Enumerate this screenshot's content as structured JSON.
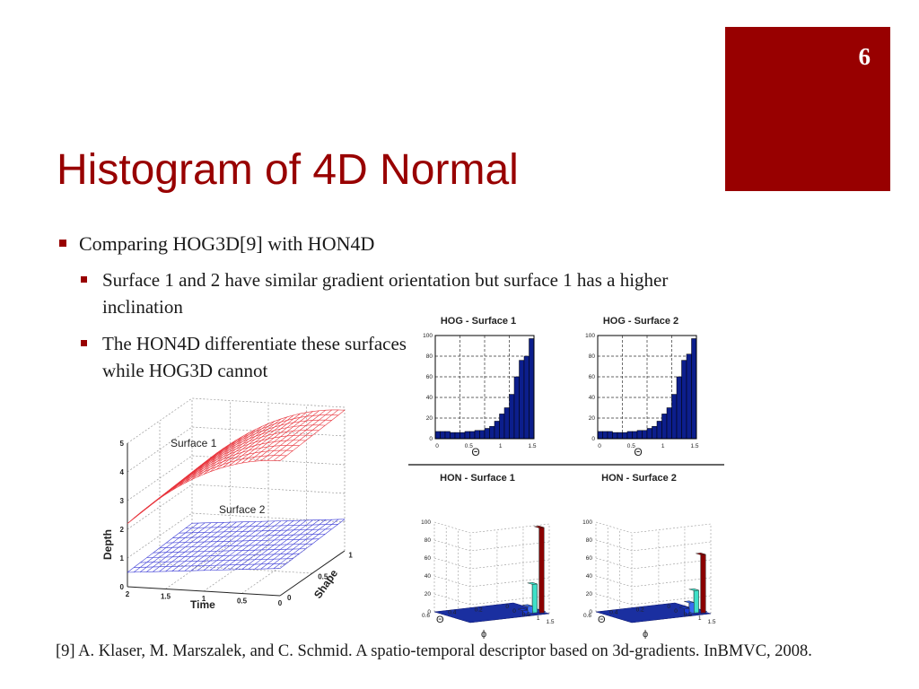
{
  "slide": {
    "number": "6",
    "title": "Histogram of 4D Normal",
    "bullets": [
      "Comparing HOG3D[9] with HON4D",
      "Surface 1 and 2 have similar gradient orientation but surface 1 has a higher inclination",
      "The HON4D differentiate these surfaces while HOG3D cannot"
    ],
    "reference": "[9] A. Klaser, M. Marszalek, and C. Schmid. A spatio-temporal descriptor based on 3d-gradients. InBMVC, 2008.",
    "colors": {
      "accent": "#980000",
      "surface1": "#e8333b",
      "surface2": "#3b3bd6",
      "hist_bar": "#0c1e8c"
    }
  },
  "chart_data": [
    {
      "type": "surface",
      "labels": [
        "Surface 1",
        "Surface 2"
      ],
      "xlabel": "Time",
      "ylabel": "Shape",
      "zlabel": "Depth",
      "xticks": [
        "2",
        "1.5",
        "1",
        "0.5",
        "0"
      ],
      "yticks": [
        "0",
        "0.5",
        "1"
      ],
      "zticks": [
        "0",
        "1",
        "2",
        "3",
        "4",
        "5"
      ],
      "zlim": [
        0,
        5
      ]
    },
    {
      "type": "bar",
      "title": "HOG - Surface 1",
      "xlabel": "Θ",
      "xticks": [
        "0",
        "0.5",
        "1",
        "1.5"
      ],
      "yticks": [
        "0",
        "20",
        "40",
        "60",
        "80",
        "100"
      ],
      "ylim": [
        0,
        100
      ],
      "values": [
        7,
        7,
        7,
        6,
        6,
        6,
        7,
        7,
        8,
        8,
        10,
        12,
        17,
        24,
        30,
        43,
        60,
        76,
        80,
        97
      ]
    },
    {
      "type": "bar",
      "title": "HOG - Surface 2",
      "xlabel": "Θ",
      "xticks": [
        "0",
        "0.5",
        "1",
        "1.5"
      ],
      "yticks": [
        "0",
        "20",
        "40",
        "60",
        "80",
        "100"
      ],
      "ylim": [
        0,
        100
      ],
      "values": [
        7,
        7,
        7,
        6,
        6,
        6,
        7,
        7,
        8,
        8,
        10,
        12,
        17,
        24,
        30,
        43,
        60,
        76,
        82,
        97
      ]
    },
    {
      "type": "bar3d",
      "title": "HON - Surface 1",
      "xlabel": "ϕ",
      "ylabel": "Θ",
      "xticks": [
        "0",
        "0.5",
        "1",
        "1.5"
      ],
      "yticks": [
        "0",
        "0.2",
        "0.4",
        "0.6"
      ],
      "zticks": [
        "0",
        "20",
        "40",
        "60",
        "80",
        "100"
      ],
      "zlim": [
        0,
        100
      ],
      "peaks": [
        95,
        32,
        8,
        4
      ]
    },
    {
      "type": "bar3d",
      "title": "HON - Surface 2",
      "xlabel": "ϕ",
      "ylabel": "Θ",
      "xticks": [
        "0",
        "0.5",
        "1",
        "1.5"
      ],
      "yticks": [
        "0",
        "0.2",
        "0.4",
        "0.6"
      ],
      "zticks": [
        "0",
        "20",
        "40",
        "60",
        "80",
        "100"
      ],
      "zlim": [
        0,
        100
      ],
      "peaks": [
        65,
        25,
        12,
        6
      ]
    }
  ]
}
